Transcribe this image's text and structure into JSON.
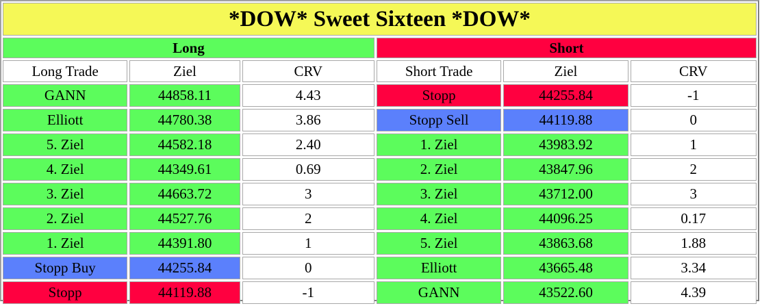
{
  "title": "*DOW* Sweet Sixteen *DOW*",
  "colors": {
    "title": "#f5f857",
    "green": "#5cfc5c",
    "red": "#ff0040",
    "blue": "#5b80fc",
    "white": "#ffffff"
  },
  "long": {
    "label": "Long",
    "headers": [
      "Long Trade",
      "Ziel",
      "CRV"
    ],
    "rows": [
      {
        "trade": "GANN",
        "ziel": "44858.11",
        "crv": "4.43",
        "color": "green"
      },
      {
        "trade": "Elliott",
        "ziel": "44780.38",
        "crv": "3.86",
        "color": "green"
      },
      {
        "trade": "5. Ziel",
        "ziel": "44582.18",
        "crv": "2.40",
        "color": "green"
      },
      {
        "trade": "4. Ziel",
        "ziel": "44349.61",
        "crv": "0.69",
        "color": "green"
      },
      {
        "trade": "3. Ziel",
        "ziel": "44663.72",
        "crv": "3",
        "color": "green"
      },
      {
        "trade": "2. Ziel",
        "ziel": "44527.76",
        "crv": "2",
        "color": "green"
      },
      {
        "trade": "1. Ziel",
        "ziel": "44391.80",
        "crv": "1",
        "color": "green"
      },
      {
        "trade": "Stopp Buy",
        "ziel": "44255.84",
        "crv": "0",
        "color": "blue"
      },
      {
        "trade": "Stopp",
        "ziel": "44119.88",
        "crv": "-1",
        "color": "red"
      }
    ]
  },
  "short": {
    "label": "Short",
    "headers": [
      "Short Trade",
      "Ziel",
      "CRV"
    ],
    "rows": [
      {
        "trade": "Stopp",
        "ziel": "44255.84",
        "crv": "-1",
        "color": "red"
      },
      {
        "trade": "Stopp Sell",
        "ziel": "44119.88",
        "crv": "0",
        "color": "blue"
      },
      {
        "trade": "1. Ziel",
        "ziel": "43983.92",
        "crv": "1",
        "color": "green"
      },
      {
        "trade": "2. Ziel",
        "ziel": "43847.96",
        "crv": "2",
        "color": "green"
      },
      {
        "trade": "3. Ziel",
        "ziel": "43712.00",
        "crv": "3",
        "color": "green"
      },
      {
        "trade": "4. Ziel",
        "ziel": "44096.25",
        "crv": "0.17",
        "color": "green"
      },
      {
        "trade": "5. Ziel",
        "ziel": "43863.68",
        "crv": "1.88",
        "color": "green"
      },
      {
        "trade": "Elliott",
        "ziel": "43665.48",
        "crv": "3.34",
        "color": "green"
      },
      {
        "trade": "GANN",
        "ziel": "43522.60",
        "crv": "4.39",
        "color": "green"
      }
    ]
  }
}
